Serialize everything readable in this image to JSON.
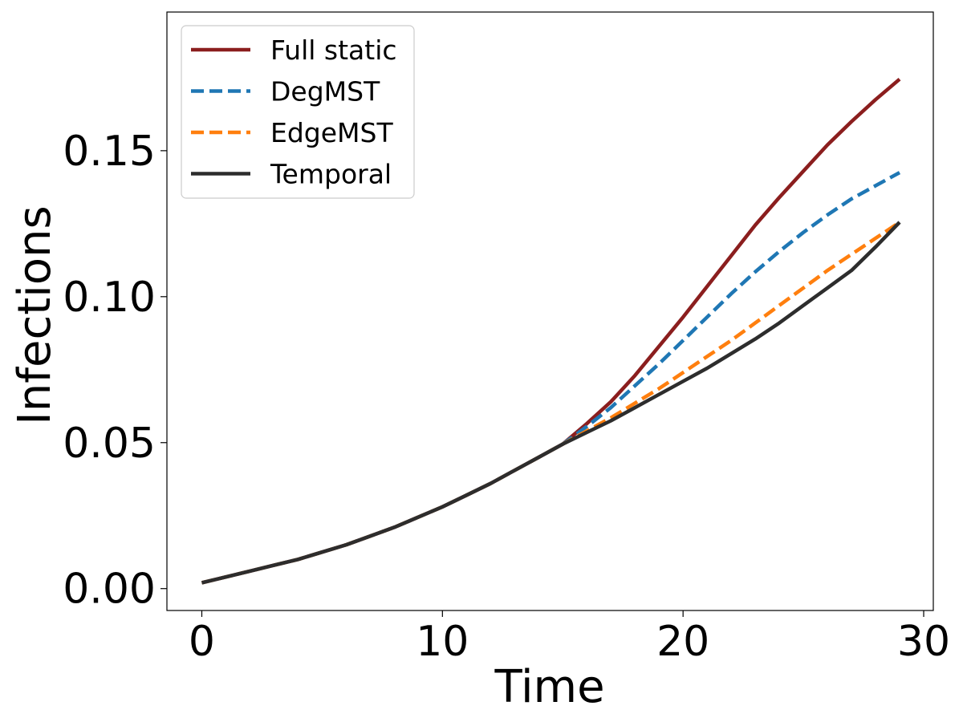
{
  "chart_data": {
    "type": "line",
    "xlabel": "Time",
    "ylabel": "Infections",
    "xlim": [
      -1.45,
      30.4
    ],
    "ylim": [
      -0.0075,
      0.1975
    ],
    "xticks": [
      0,
      10,
      20,
      30
    ],
    "xtick_labels": [
      "0",
      "10",
      "20",
      "30"
    ],
    "yticks": [
      0.0,
      0.05,
      0.1,
      0.15
    ],
    "ytick_labels": [
      "0.00",
      "0.05",
      "0.10",
      "0.15"
    ],
    "grid": false,
    "legend_position": "upper-left",
    "x": [
      0,
      1,
      2,
      3,
      4,
      5,
      6,
      7,
      8,
      9,
      10,
      11,
      12,
      13,
      14,
      15,
      16,
      17,
      18,
      19,
      20,
      21,
      22,
      23,
      24,
      25,
      26,
      27,
      28,
      29
    ],
    "series": [
      {
        "name": "Full static",
        "color": "#8b1e1e",
        "dash": "solid",
        "values": [
          0.002,
          0.004,
          0.006,
          0.008,
          0.01,
          0.0125,
          0.015,
          0.018,
          0.021,
          0.0245,
          0.028,
          0.032,
          0.036,
          0.0405,
          0.045,
          0.0495,
          0.0565,
          0.064,
          0.073,
          0.083,
          0.093,
          0.1035,
          0.114,
          0.1245,
          0.134,
          0.143,
          0.152,
          0.16,
          0.1675,
          0.1745
        ]
      },
      {
        "name": "DegMST",
        "color": "#1f77b4",
        "dash": "dashed",
        "values": [
          0.002,
          0.004,
          0.006,
          0.008,
          0.01,
          0.0125,
          0.015,
          0.018,
          0.021,
          0.0245,
          0.028,
          0.032,
          0.036,
          0.0405,
          0.045,
          0.0495,
          0.0555,
          0.062,
          0.0695,
          0.077,
          0.085,
          0.093,
          0.101,
          0.1085,
          0.1155,
          0.122,
          0.128,
          0.1335,
          0.138,
          0.1425
        ]
      },
      {
        "name": "EdgeMST",
        "color": "#ff7f0e",
        "dash": "dashed",
        "values": [
          0.002,
          0.004,
          0.006,
          0.008,
          0.01,
          0.0125,
          0.015,
          0.018,
          0.021,
          0.0245,
          0.028,
          0.032,
          0.036,
          0.0405,
          0.045,
          0.0495,
          0.054,
          0.0585,
          0.0635,
          0.0685,
          0.074,
          0.0795,
          0.085,
          0.091,
          0.097,
          0.103,
          0.109,
          0.1145,
          0.12,
          0.1255
        ]
      },
      {
        "name": "Temporal",
        "color": "#2d2d2d",
        "dash": "solid",
        "values": [
          0.002,
          0.004,
          0.006,
          0.008,
          0.01,
          0.0125,
          0.015,
          0.018,
          0.021,
          0.0245,
          0.028,
          0.032,
          0.036,
          0.0405,
          0.045,
          0.0495,
          0.0535,
          0.0575,
          0.062,
          0.0665,
          0.071,
          0.0755,
          0.0805,
          0.0855,
          0.091,
          0.097,
          0.103,
          0.109,
          0.117,
          0.1255
        ]
      }
    ]
  }
}
